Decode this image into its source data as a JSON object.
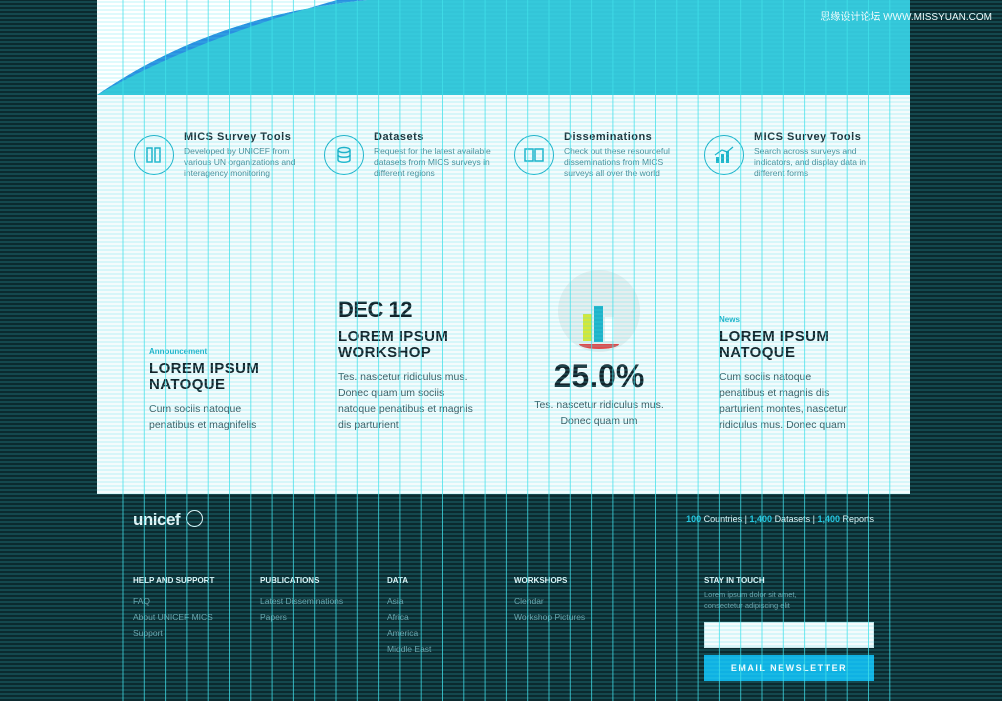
{
  "watermark": "思缘设计论坛 WWW.MISSYUAN.COM",
  "features": [
    {
      "title": "MICS Survey Tools",
      "desc": "Developed by UNICEF from various UN organizations and interagency monitoring",
      "icon": "books-icon"
    },
    {
      "title": "Datasets",
      "desc": "Request for the latest available datasets from MICS surveys in different regions",
      "icon": "database-icon"
    },
    {
      "title": "Disseminations",
      "desc": "Check out these resourceful disseminations from MICS surveys all over the world",
      "icon": "open-book-icon"
    },
    {
      "title": "MICS Survey Tools",
      "desc": "Search across surveys and indicators, and display data in different forms",
      "icon": "chart-icon"
    }
  ],
  "cards": {
    "announcement": {
      "label": "Announcement",
      "title": "LOREM IPSUM NATOQUE",
      "text": "Cum sociis natoque penatibus et magnifelis"
    },
    "workshop": {
      "date": "DEC 12",
      "title": "LOREM IPSUM WORKSHOP",
      "text": "Tes. nascetur ridiculus mus. Donec quam um sociis natoque penatibus et magnis dis parturient"
    },
    "stat": {
      "value": "25.0%",
      "text": "Tes. nascetur ridiculus mus. Donec quam um"
    },
    "news": {
      "label": "News",
      "title": "LOREM IPSUM NATOQUE",
      "text": "Cum sociis natoque penatibus et magnis dis parturient montes, nascetur ridiculus mus. Donec quam"
    }
  },
  "footer": {
    "logo": "unicef",
    "stats": [
      {
        "n": "100",
        "label": "Countries"
      },
      {
        "n": "1,400",
        "label": "Datasets"
      },
      {
        "n": "1,400",
        "label": "Reports"
      }
    ],
    "columns": [
      {
        "heading": "HELP AND SUPPORT",
        "links": [
          "FAQ",
          "About UNICEF MICS",
          "Support"
        ]
      },
      {
        "heading": "PUBLICATIONS",
        "links": [
          "Latest Disseminations",
          "Papers"
        ]
      },
      {
        "heading": "DATA",
        "links": [
          "Asia",
          "Africa",
          "America",
          "Middle East"
        ]
      },
      {
        "heading": "WORKSHOPS",
        "links": [
          "Clendar",
          "Workshop Pictures"
        ]
      }
    ],
    "stay": {
      "heading": "STAY IN TOUCH",
      "desc": "Lorem ipsum dolor sit amet, consectetur adipiscing elit",
      "button": "EMAIL NEWSLETTER"
    }
  },
  "colors": {
    "accent": "#1fb2c9",
    "hero": "#33c5d8",
    "footer": "#0b2a2f",
    "button": "#0fb1e3"
  }
}
